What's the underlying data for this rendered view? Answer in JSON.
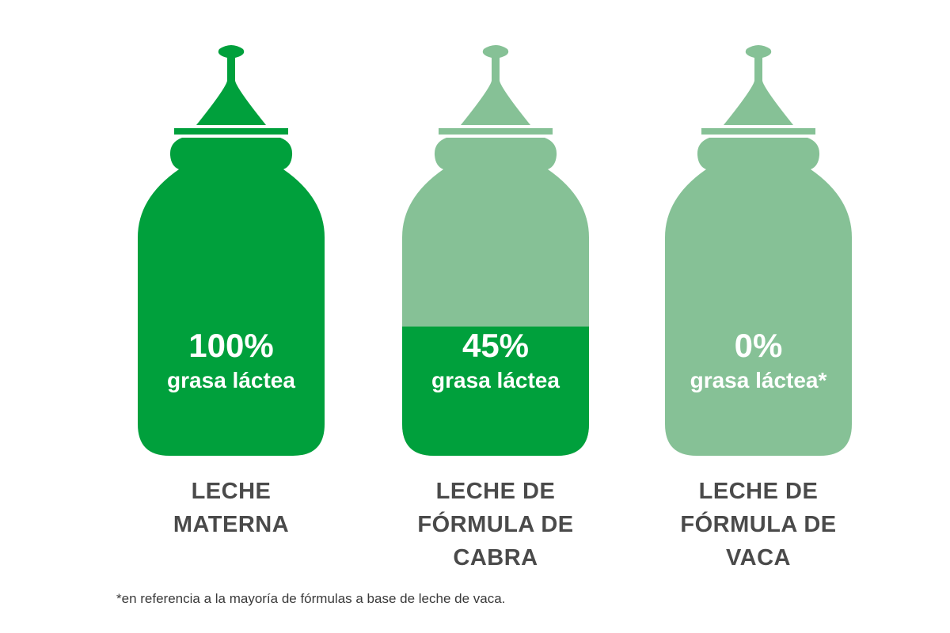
{
  "chart_data": {
    "type": "bar",
    "ylim": [
      0,
      100
    ],
    "categories": [
      [
        "LECHE",
        "MATERNA"
      ],
      [
        "LECHE DE",
        "FÓRMULA DE",
        "CABRA"
      ],
      [
        "LECHE DE",
        "FÓRMULA DE",
        "VACA"
      ]
    ],
    "values": [
      100,
      45,
      0
    ],
    "value_labels": [
      "100%",
      "45%",
      "0%"
    ],
    "sub_labels": [
      "grasa láctea",
      "grasa láctea",
      "grasa láctea*"
    ],
    "footnote": "*en referencia a la mayoría de fórmulas a base de leche de vaca.",
    "colors": {
      "fill": "#00a03c",
      "empty": "#86c196",
      "text_on_bottle": "#ffffff",
      "label": "#4a4a4a"
    }
  }
}
